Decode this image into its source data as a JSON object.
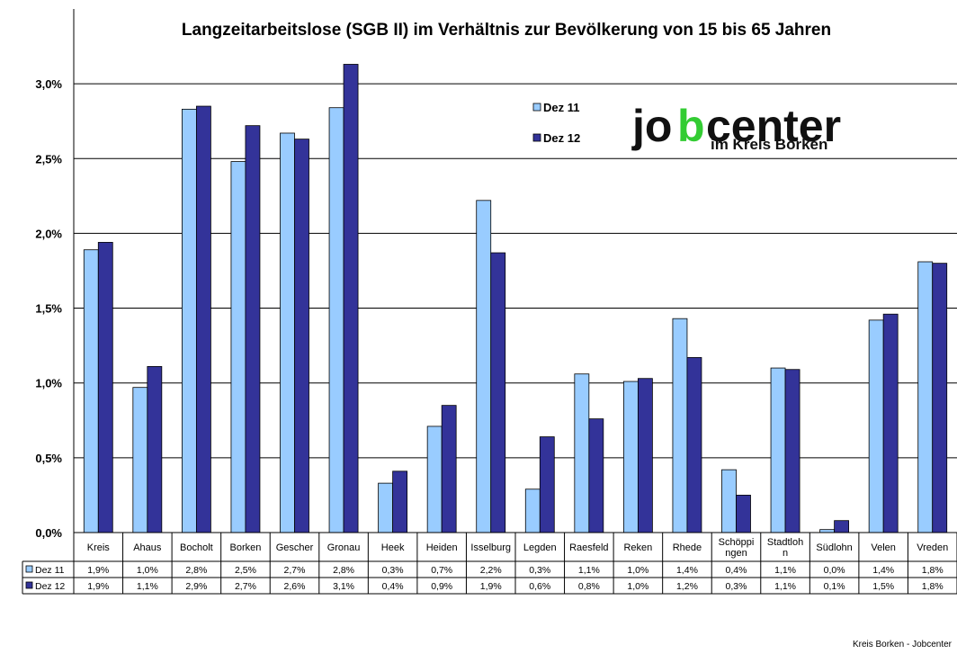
{
  "chart_data": {
    "type": "bar",
    "title": "Langzeitarbeitslose (SGB II) im Verhältnis zur Bevölkerung von 15 bis 65 Jahren",
    "xlabel": "",
    "ylabel": "",
    "ylim": [
      0,
      3.5
    ],
    "yticks": [
      "0,0%",
      "0,5%",
      "1,0%",
      "1,5%",
      "2,0%",
      "2,5%",
      "3,0%"
    ],
    "grid": true,
    "legend_position": "top-center",
    "categories": [
      [
        "Kreis"
      ],
      [
        "Ahaus"
      ],
      [
        "Bocholt"
      ],
      [
        "Borken"
      ],
      [
        "Gescher"
      ],
      [
        "Gronau"
      ],
      [
        "Heek"
      ],
      [
        "Heiden"
      ],
      [
        "Isselburg"
      ],
      [
        "Legden"
      ],
      [
        "Raesfeld"
      ],
      [
        "Reken"
      ],
      [
        "Rhede"
      ],
      [
        "Schöppi",
        "ngen"
      ],
      [
        "Stadtloh",
        "n"
      ],
      [
        "Südlohn"
      ],
      [
        "Velen"
      ],
      [
        "Vreden"
      ]
    ],
    "series": [
      {
        "name": "Dez 11",
        "color": "#99ccff",
        "values": [
          1.89,
          0.97,
          2.83,
          2.48,
          2.67,
          2.84,
          0.33,
          0.71,
          2.22,
          0.29,
          1.06,
          1.01,
          1.43,
          0.42,
          1.1,
          0.02,
          1.42,
          1.81
        ],
        "labels": [
          "1,9%",
          "1,0%",
          "2,8%",
          "2,5%",
          "2,7%",
          "2,8%",
          "0,3%",
          "0,7%",
          "2,2%",
          "0,3%",
          "1,1%",
          "1,0%",
          "1,4%",
          "0,4%",
          "1,1%",
          "0,0%",
          "1,4%",
          "1,8%"
        ]
      },
      {
        "name": "Dez 12",
        "color": "#333399",
        "values": [
          1.94,
          1.11,
          2.85,
          2.72,
          2.63,
          3.13,
          0.41,
          0.85,
          1.87,
          0.64,
          0.76,
          1.03,
          1.17,
          0.25,
          1.09,
          0.08,
          1.46,
          1.8
        ],
        "labels": [
          "1,9%",
          "1,1%",
          "2,9%",
          "2,7%",
          "2,6%",
          "3,1%",
          "0,4%",
          "0,9%",
          "1,9%",
          "0,6%",
          "0,8%",
          "1,0%",
          "1,2%",
          "0,3%",
          "1,1%",
          "0,1%",
          "1,5%",
          "1,8%"
        ]
      }
    ]
  },
  "logo": {
    "part1": "jo",
    "part2": "b",
    "part3": "center",
    "subtitle": "im Kreis Borken",
    "color_dark": "#111111",
    "color_accent": "#33cc33"
  },
  "footer": "Kreis Borken - Jobcenter"
}
